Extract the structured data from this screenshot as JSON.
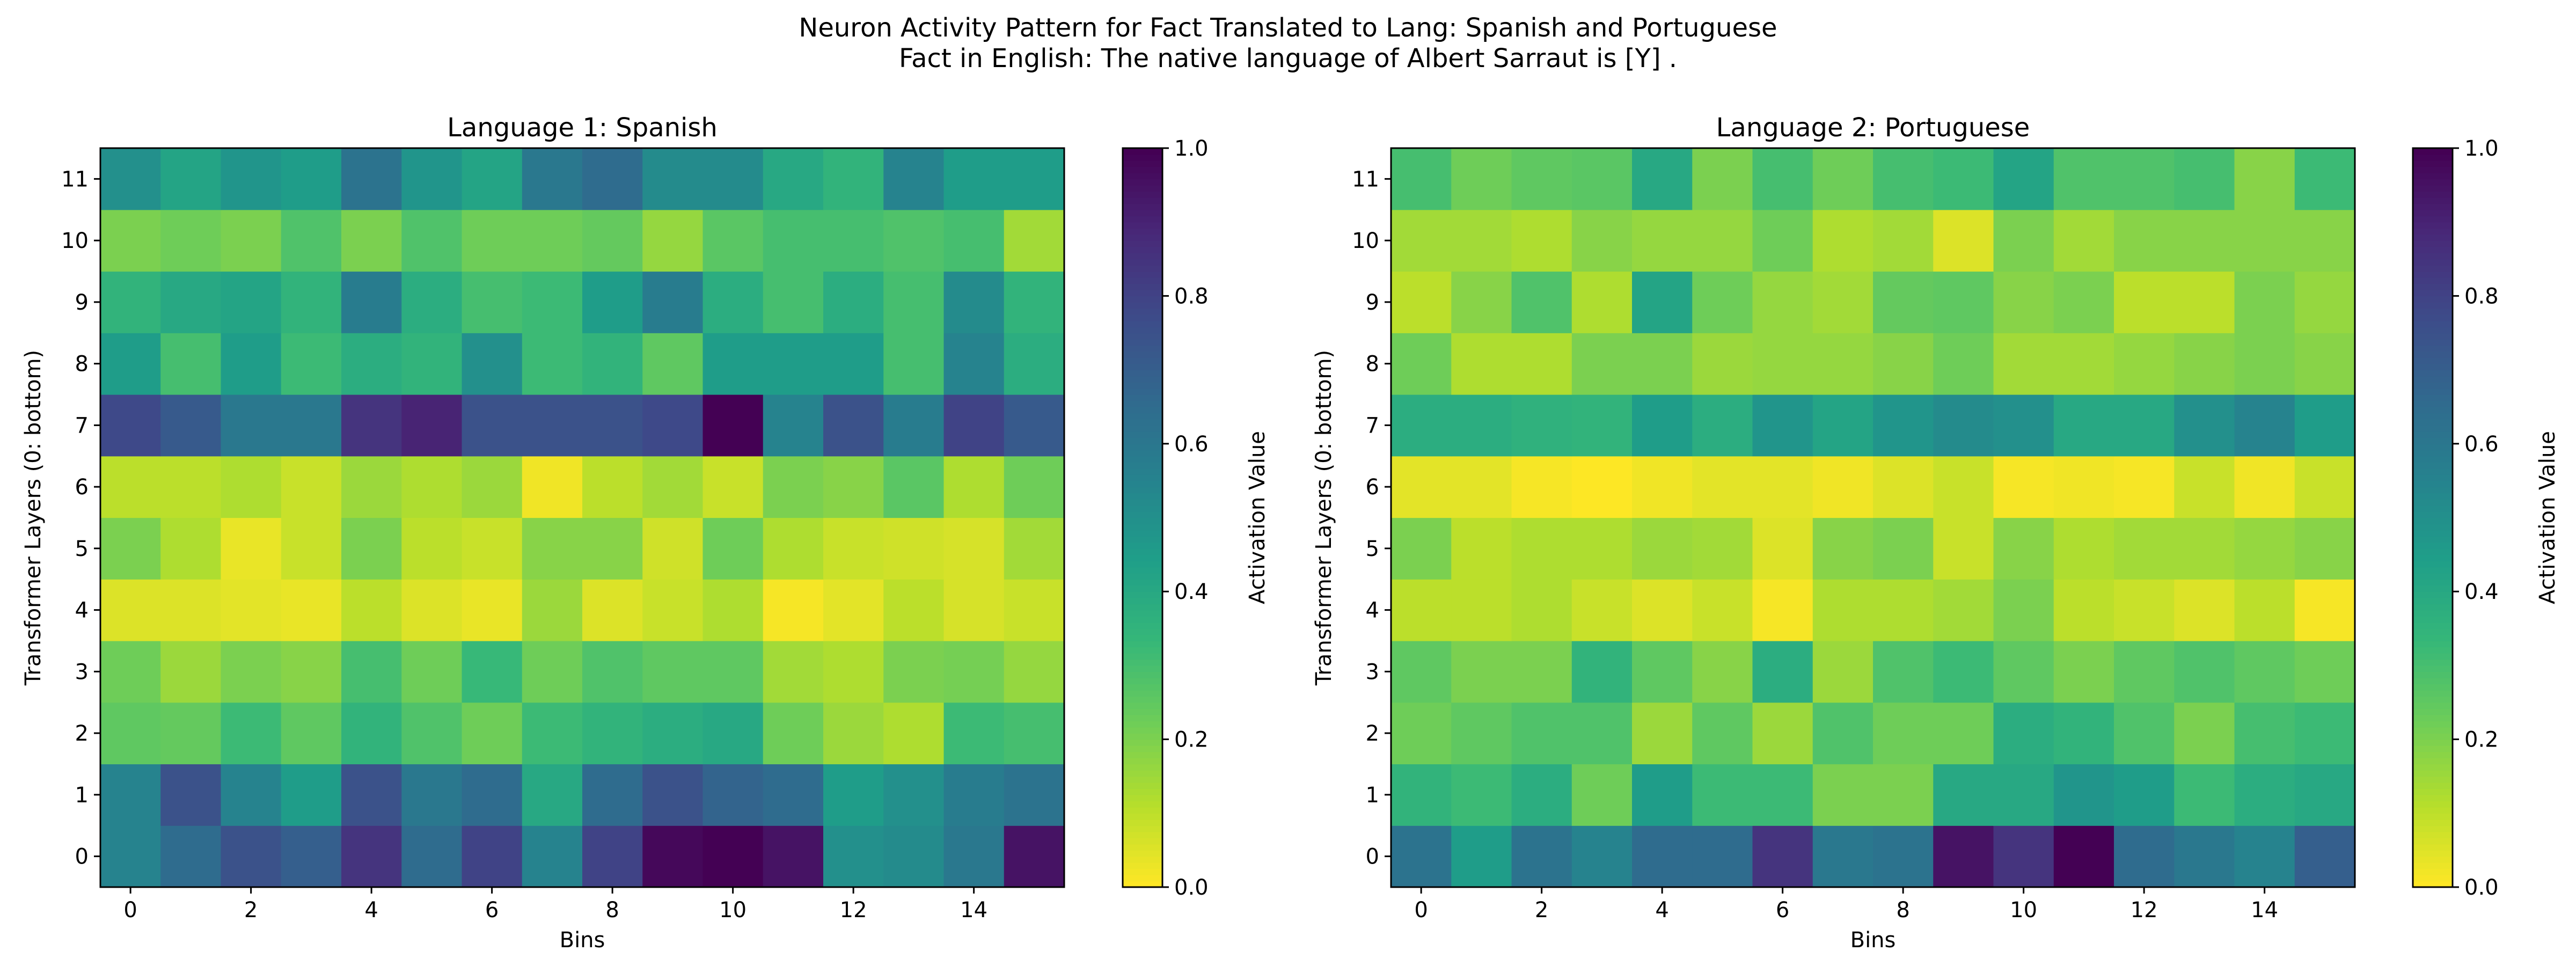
{
  "figure": {
    "title_line1": "Neuron Activity Pattern for Fact Translated to Lang: Spanish and Portuguese",
    "title_line2": "Fact in English: The native language of Albert Sarraut is [Y] ."
  },
  "chart_data": [
    {
      "type": "heatmap",
      "title": "Language 1: Spanish",
      "xlabel": "Bins",
      "ylabel": "Transformer Layers (0: bottom)",
      "colorbar_label": "Activation Value",
      "colormap": "viridis_r",
      "vmin": 0.0,
      "vmax": 1.0,
      "x_ticks": [
        0,
        2,
        4,
        6,
        8,
        10,
        12,
        14
      ],
      "y_ticks": [
        0,
        1,
        2,
        3,
        4,
        5,
        6,
        7,
        8,
        9,
        10,
        11
      ],
      "colorbar_ticks": [
        "0.0",
        "0.2",
        "0.4",
        "0.6",
        "0.8",
        "1.0"
      ],
      "rows": [
        [
          0.55,
          0.65,
          0.75,
          0.7,
          0.85,
          0.65,
          0.8,
          0.55,
          0.8,
          0.98,
          1.0,
          0.95,
          0.5,
          0.52,
          0.6,
          0.95
        ],
        [
          0.55,
          0.75,
          0.55,
          0.45,
          0.75,
          0.6,
          0.65,
          0.4,
          0.65,
          0.75,
          0.68,
          0.65,
          0.45,
          0.5,
          0.58,
          0.62
        ],
        [
          0.25,
          0.24,
          0.32,
          0.25,
          0.35,
          0.28,
          0.22,
          0.32,
          0.35,
          0.38,
          0.4,
          0.22,
          0.15,
          0.12,
          0.32,
          0.3
        ],
        [
          0.22,
          0.15,
          0.2,
          0.18,
          0.3,
          0.22,
          0.33,
          0.22,
          0.28,
          0.25,
          0.25,
          0.14,
          0.12,
          0.2,
          0.21,
          0.16
        ],
        [
          0.05,
          0.05,
          0.04,
          0.03,
          0.1,
          0.05,
          0.03,
          0.15,
          0.05,
          0.08,
          0.12,
          0.01,
          0.04,
          0.1,
          0.06,
          0.08
        ],
        [
          0.2,
          0.12,
          0.03,
          0.08,
          0.2,
          0.1,
          0.08,
          0.18,
          0.18,
          0.07,
          0.22,
          0.12,
          0.08,
          0.07,
          0.06,
          0.14
        ],
        [
          0.1,
          0.1,
          0.12,
          0.08,
          0.15,
          0.12,
          0.15,
          0.02,
          0.1,
          0.14,
          0.08,
          0.2,
          0.18,
          0.26,
          0.12,
          0.22
        ],
        [
          0.78,
          0.72,
          0.6,
          0.6,
          0.85,
          0.9,
          0.75,
          0.75,
          0.75,
          0.78,
          1.0,
          0.55,
          0.75,
          0.58,
          0.8,
          0.72
        ],
        [
          0.45,
          0.3,
          0.45,
          0.32,
          0.38,
          0.35,
          0.5,
          0.32,
          0.35,
          0.25,
          0.45,
          0.45,
          0.45,
          0.3,
          0.55,
          0.38
        ],
        [
          0.35,
          0.4,
          0.42,
          0.35,
          0.58,
          0.38,
          0.3,
          0.32,
          0.45,
          0.58,
          0.38,
          0.3,
          0.38,
          0.3,
          0.52,
          0.35
        ],
        [
          0.2,
          0.22,
          0.2,
          0.28,
          0.2,
          0.28,
          0.22,
          0.22,
          0.24,
          0.16,
          0.26,
          0.3,
          0.3,
          0.28,
          0.3,
          0.14
        ],
        [
          0.5,
          0.42,
          0.48,
          0.45,
          0.62,
          0.48,
          0.42,
          0.6,
          0.65,
          0.52,
          0.52,
          0.4,
          0.35,
          0.55,
          0.45,
          0.45
        ]
      ]
    },
    {
      "type": "heatmap",
      "title": "Language 2: Portuguese",
      "xlabel": "Bins",
      "ylabel": "Transformer Layers (0: bottom)",
      "colorbar_label": "Activation Value",
      "colormap": "viridis_r",
      "vmin": 0.0,
      "vmax": 1.0,
      "x_ticks": [
        0,
        2,
        4,
        6,
        8,
        10,
        12,
        14
      ],
      "y_ticks": [
        0,
        1,
        2,
        3,
        4,
        5,
        6,
        7,
        8,
        9,
        10,
        11
      ],
      "colorbar_ticks": [
        "0.0",
        "0.2",
        "0.4",
        "0.6",
        "0.8",
        "1.0"
      ],
      "rows": [
        [
          0.62,
          0.45,
          0.62,
          0.55,
          0.65,
          0.65,
          0.85,
          0.6,
          0.62,
          0.95,
          0.85,
          1.0,
          0.65,
          0.6,
          0.55,
          0.7
        ],
        [
          0.35,
          0.32,
          0.38,
          0.22,
          0.45,
          0.32,
          0.32,
          0.2,
          0.2,
          0.4,
          0.4,
          0.48,
          0.45,
          0.32,
          0.38,
          0.4
        ],
        [
          0.22,
          0.25,
          0.28,
          0.28,
          0.15,
          0.25,
          0.15,
          0.28,
          0.22,
          0.22,
          0.38,
          0.35,
          0.28,
          0.2,
          0.3,
          0.32
        ],
        [
          0.25,
          0.2,
          0.2,
          0.35,
          0.25,
          0.18,
          0.38,
          0.15,
          0.28,
          0.32,
          0.25,
          0.2,
          0.25,
          0.28,
          0.25,
          0.22
        ],
        [
          0.1,
          0.1,
          0.12,
          0.08,
          0.05,
          0.08,
          0.01,
          0.12,
          0.12,
          0.14,
          0.2,
          0.1,
          0.08,
          0.05,
          0.1,
          0.01
        ],
        [
          0.2,
          0.1,
          0.12,
          0.12,
          0.15,
          0.14,
          0.05,
          0.18,
          0.2,
          0.08,
          0.18,
          0.12,
          0.14,
          0.14,
          0.16,
          0.18
        ],
        [
          0.04,
          0.04,
          0.01,
          0.0,
          0.02,
          0.04,
          0.04,
          0.02,
          0.05,
          0.08,
          0.01,
          0.02,
          0.01,
          0.08,
          0.02,
          0.08
        ],
        [
          0.38,
          0.38,
          0.36,
          0.35,
          0.45,
          0.38,
          0.48,
          0.42,
          0.48,
          0.52,
          0.5,
          0.4,
          0.4,
          0.5,
          0.55,
          0.45
        ],
        [
          0.22,
          0.12,
          0.12,
          0.2,
          0.2,
          0.15,
          0.16,
          0.16,
          0.18,
          0.22,
          0.14,
          0.14,
          0.16,
          0.18,
          0.2,
          0.18
        ],
        [
          0.1,
          0.18,
          0.28,
          0.12,
          0.42,
          0.22,
          0.16,
          0.14,
          0.24,
          0.25,
          0.18,
          0.2,
          0.1,
          0.1,
          0.2,
          0.16
        ],
        [
          0.14,
          0.14,
          0.12,
          0.18,
          0.16,
          0.16,
          0.22,
          0.12,
          0.14,
          0.05,
          0.2,
          0.14,
          0.18,
          0.18,
          0.18,
          0.18
        ],
        [
          0.3,
          0.22,
          0.25,
          0.26,
          0.4,
          0.2,
          0.3,
          0.22,
          0.3,
          0.32,
          0.42,
          0.28,
          0.28,
          0.3,
          0.18,
          0.32
        ]
      ]
    }
  ]
}
